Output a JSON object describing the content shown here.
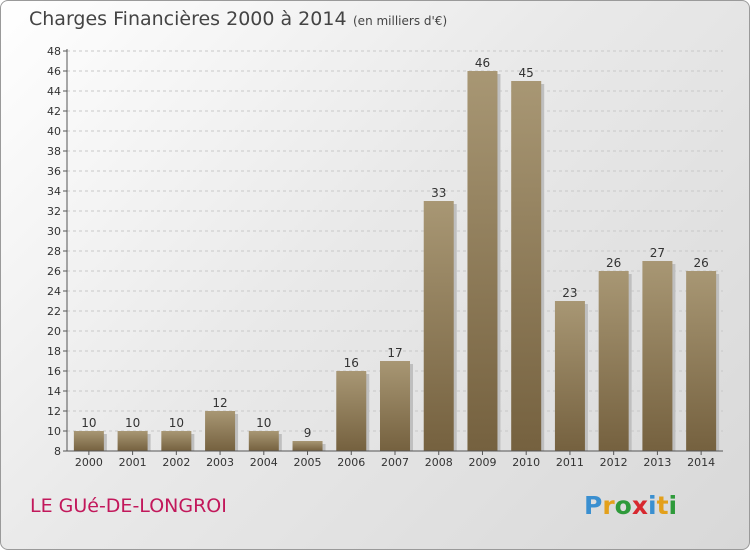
{
  "header": {
    "title": "Charges Financières 2000 à 2014",
    "subtitle": "(en milliers d'€)"
  },
  "footer": {
    "place_name": "LE GUé-DE-LONGROI",
    "brand": {
      "letters": [
        "P",
        "r",
        "o",
        "x",
        "i",
        "t",
        "i"
      ],
      "colors": [
        "#3a8fd0",
        "#e3a01b",
        "#2e9a3a",
        "#d7282f",
        "#3a8fd0",
        "#e3a01b",
        "#2e9a3a"
      ]
    }
  },
  "colors": {
    "bar_top": "#a89774",
    "bar_bottom": "#75613f",
    "bar_shadow": "#bfbfbf",
    "grid": "#c8c8c8",
    "title": "#444444",
    "place": "#c2185b"
  },
  "chart_data": {
    "type": "bar",
    "title": "Charges Financières 2000 à 2014",
    "subtitle": "(en milliers d'€)",
    "xlabel": "",
    "ylabel": "",
    "categories": [
      "2000",
      "2001",
      "2002",
      "2003",
      "2004",
      "2005",
      "2006",
      "2007",
      "2008",
      "2009",
      "2010",
      "2011",
      "2012",
      "2013",
      "2014"
    ],
    "values": [
      10,
      10,
      10,
      12,
      10,
      9,
      16,
      17,
      33,
      46,
      45,
      23,
      26,
      27,
      26
    ],
    "ylim": [
      8,
      48
    ],
    "yticks": [
      8,
      10,
      12,
      14,
      16,
      18,
      20,
      22,
      24,
      26,
      28,
      30,
      32,
      34,
      36,
      38,
      40,
      42,
      44,
      46,
      48
    ],
    "grid": true,
    "legend": "none"
  }
}
